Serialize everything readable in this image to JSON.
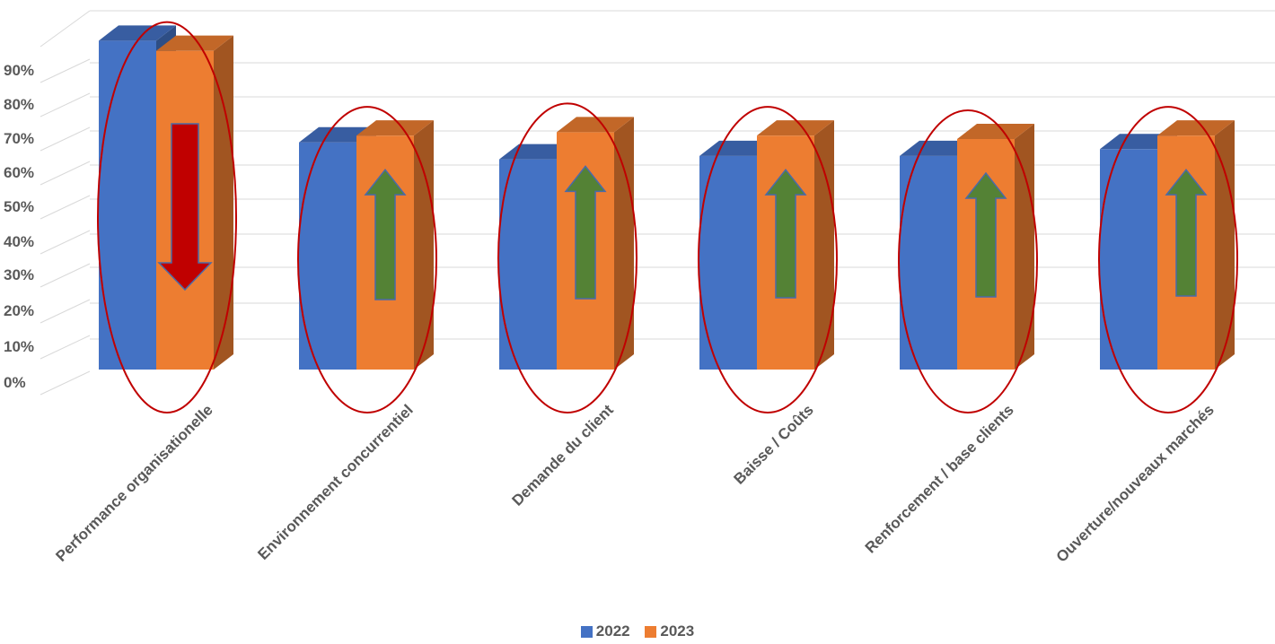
{
  "chart_data": {
    "type": "bar",
    "title": "",
    "xlabel": "",
    "ylabel": "",
    "ylim": [
      0,
      100
    ],
    "yticks": [
      "0%",
      "10%",
      "20%",
      "30%",
      "40%",
      "50%",
      "60%",
      "70%",
      "80%",
      "90%"
    ],
    "categories": [
      "Performance organisationelle",
      "Environnement concurrentiel",
      "Demande du client",
      "Baisse / Coûts",
      "Renforcement / base clients",
      "Ouverture/nouveaux marchés"
    ],
    "series": [
      {
        "name": "2022",
        "color": "#4472C4",
        "values": [
          97,
          67,
          62,
          63,
          63,
          65
        ]
      },
      {
        "name": "2023",
        "color": "#ED7D31",
        "values": [
          94,
          69,
          70,
          69,
          68,
          69
        ]
      }
    ],
    "annotations": {
      "trend": [
        "down",
        "up",
        "up",
        "up",
        "up",
        "up"
      ],
      "down_color": "#C00000",
      "up_color": "#548235",
      "ellipse_color": "#C00000"
    },
    "grid": true,
    "legend_position": "bottom"
  }
}
